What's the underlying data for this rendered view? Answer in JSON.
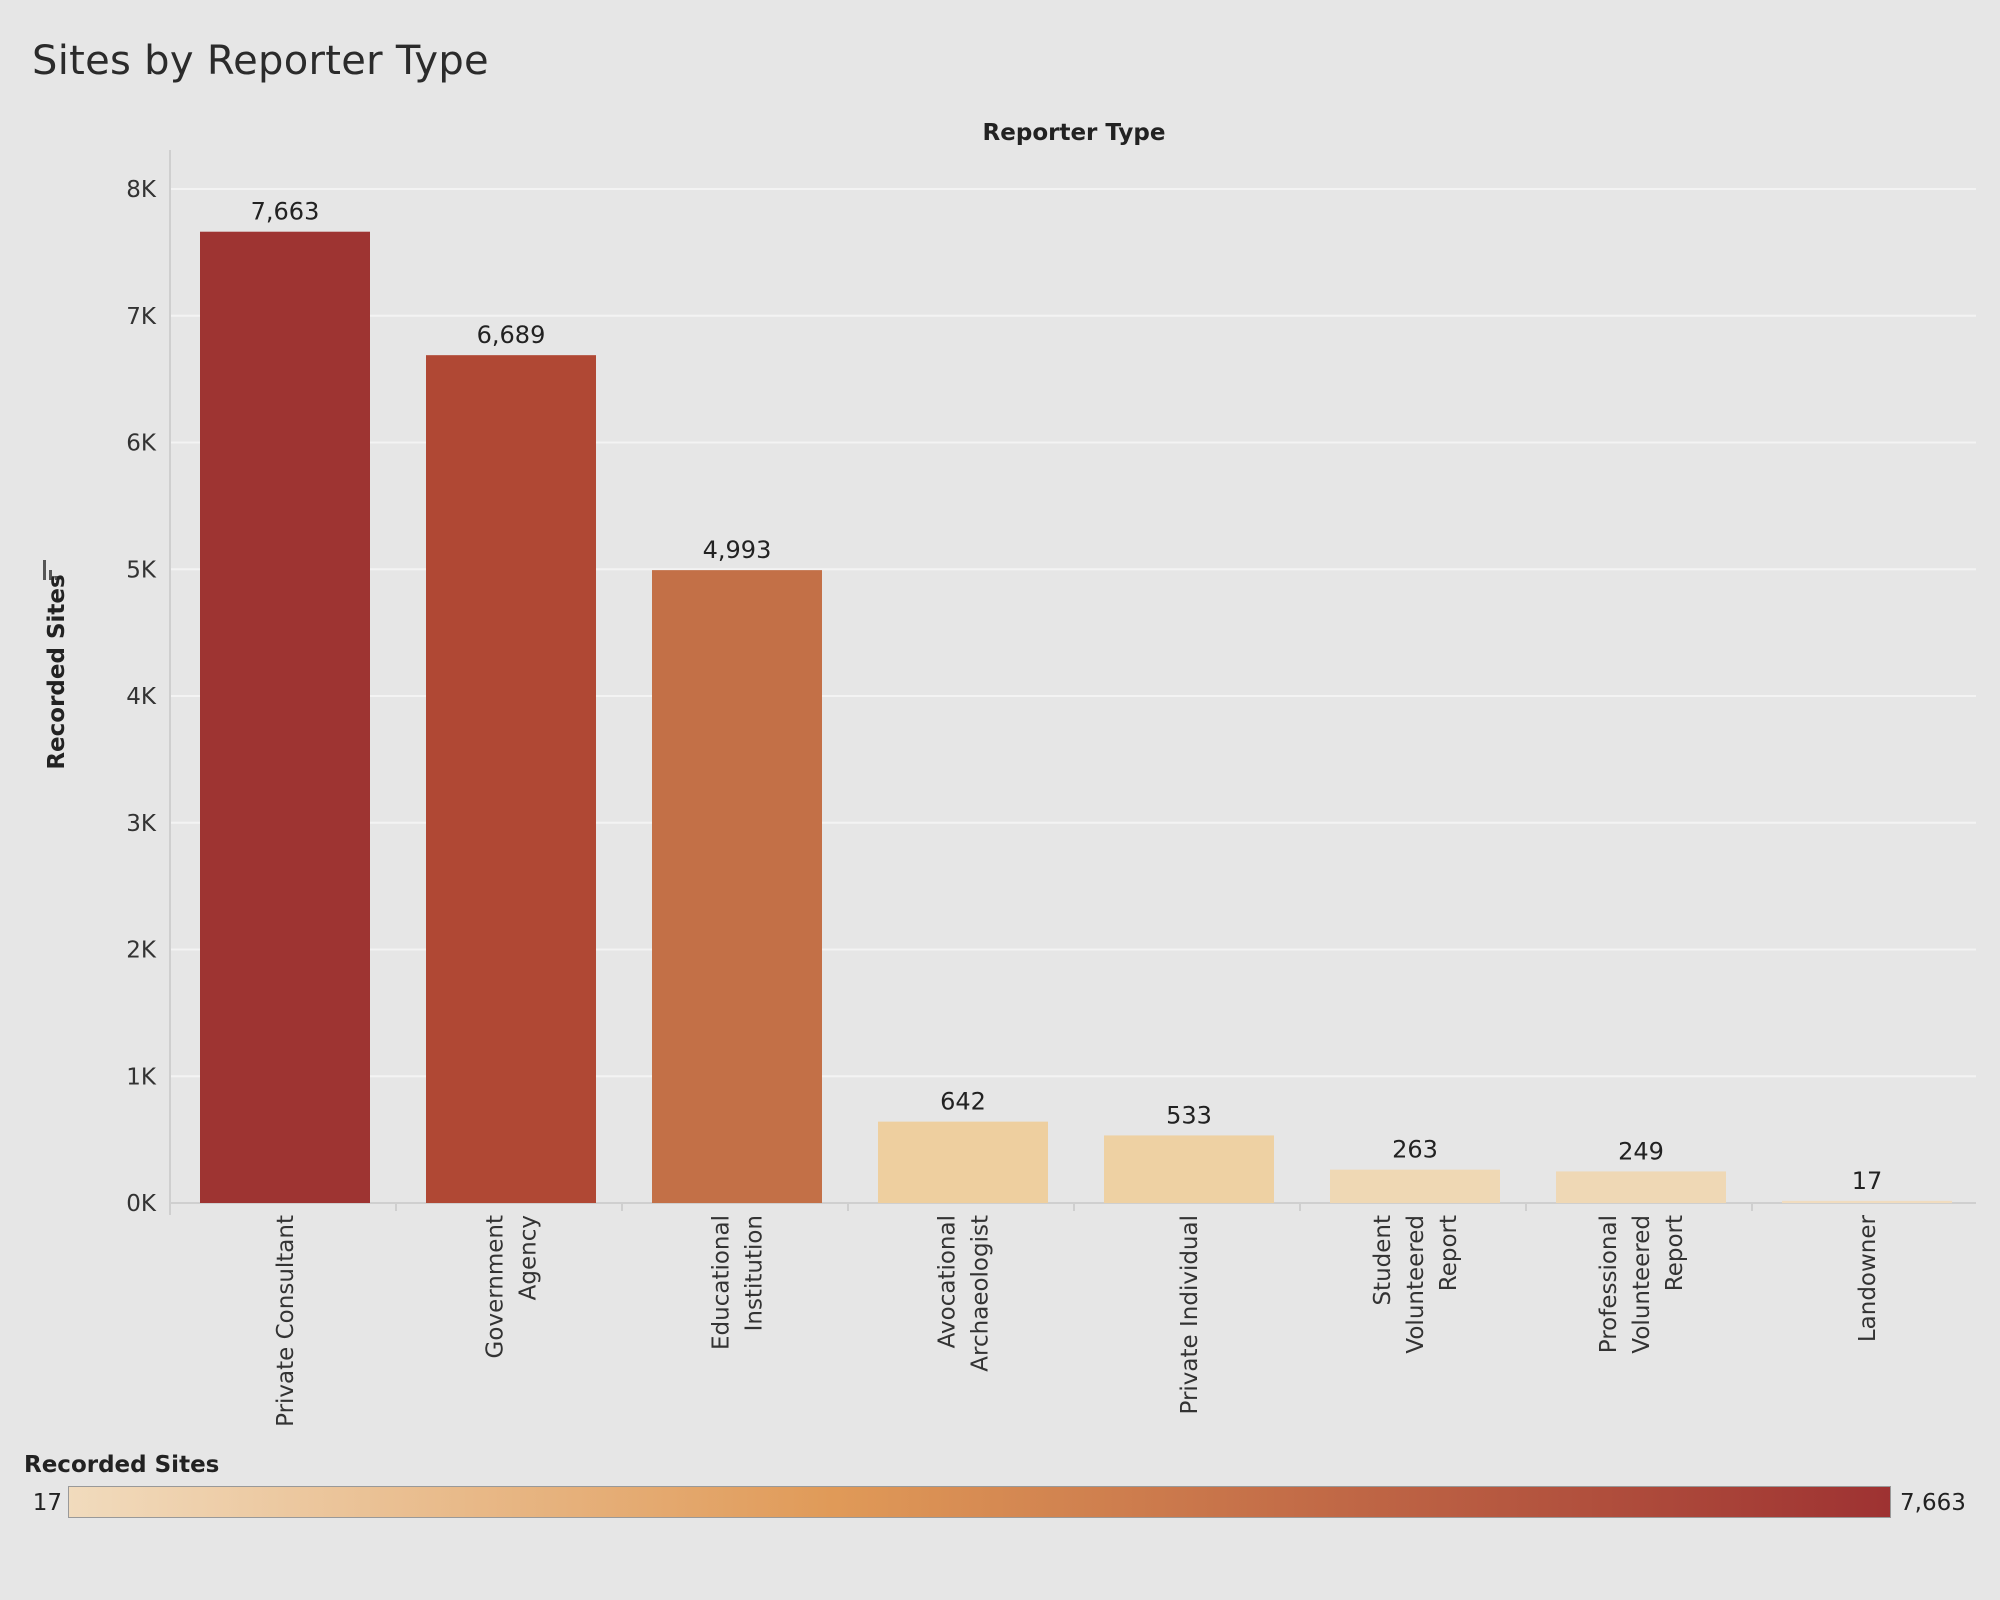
{
  "title": "Sites by Reporter Type",
  "colors": {
    "background": "#e6e6e6",
    "gridline": "#f3f3f3",
    "legend_low": "#f1dbbd",
    "legend_mid": "#e09a58",
    "legend_high": "#9e3232"
  },
  "legend": {
    "title": "Recorded Sites",
    "min_label": "17",
    "max_label": "7,663"
  },
  "chart_data": {
    "type": "bar",
    "title": "Sites by Reporter Type",
    "xlabel": "Reporter Type",
    "ylabel": "Recorded Sites",
    "ylim": [
      0,
      8000
    ],
    "yticks": [
      {
        "value": 0,
        "label": "0K"
      },
      {
        "value": 1000,
        "label": "1K"
      },
      {
        "value": 2000,
        "label": "2K"
      },
      {
        "value": 3000,
        "label": "3K"
      },
      {
        "value": 4000,
        "label": "4K"
      },
      {
        "value": 5000,
        "label": "5K"
      },
      {
        "value": 6000,
        "label": "6K"
      },
      {
        "value": 7000,
        "label": "7K"
      },
      {
        "value": 8000,
        "label": "8K"
      }
    ],
    "grid": true,
    "legend_placement": "bottom",
    "categories": [
      {
        "name": "Private Consultant",
        "lines": [
          "Private Consultant"
        ],
        "value": 7663,
        "label": "7,663",
        "color": "#9e3432"
      },
      {
        "name": "Government Agency",
        "lines": [
          "Government",
          "Agency"
        ],
        "value": 6689,
        "label": "6,689",
        "color": "#b04834"
      },
      {
        "name": "Educational Institution",
        "lines": [
          "Educational",
          "Institution"
        ],
        "value": 4993,
        "label": "4,993",
        "color": "#c37047"
      },
      {
        "name": "Avocational Archaeologist",
        "lines": [
          "Avocational",
          "Archaeologist"
        ],
        "value": 642,
        "label": "642",
        "color": "#eecf9f"
      },
      {
        "name": "Private Individual",
        "lines": [
          "Private Individual"
        ],
        "value": 533,
        "label": "533",
        "color": "#eed1a3"
      },
      {
        "name": "Student Volunteered Report",
        "lines": [
          "Student",
          "Volunteered",
          "Report"
        ],
        "value": 263,
        "label": "263",
        "color": "#efd8b4"
      },
      {
        "name": "Professional Volunteered Report",
        "lines": [
          "Professional",
          "Volunteered",
          "Report"
        ],
        "value": 249,
        "label": "249",
        "color": "#efd8b5"
      },
      {
        "name": "Landowner",
        "lines": [
          "Landowner"
        ],
        "value": 17,
        "label": "17",
        "color": "#f0dcbf"
      }
    ]
  }
}
